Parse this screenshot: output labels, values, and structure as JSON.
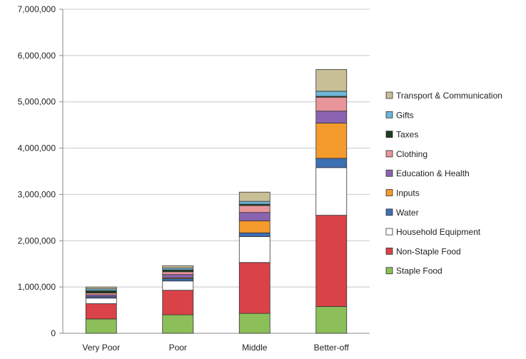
{
  "chart_data": {
    "type": "bar",
    "stacked": true,
    "categories": [
      "Very Poor",
      "Poor",
      "Middle",
      "Better-off"
    ],
    "ylim": [
      0,
      7000000
    ],
    "yticks": [
      {
        "value": 0,
        "label": "0"
      },
      {
        "value": 1000000,
        "label": "1,000,000"
      },
      {
        "value": 2000000,
        "label": "2,000,000"
      },
      {
        "value": 3000000,
        "label": "3,000,000"
      },
      {
        "value": 4000000,
        "label": "4,000,000"
      },
      {
        "value": 5000000,
        "label": "5,000,000"
      },
      {
        "value": 6000000,
        "label": "6,000,000"
      },
      {
        "value": 7000000,
        "label": "7,000,000"
      }
    ],
    "grid": true,
    "legend_position": "right",
    "series": [
      {
        "name": "Staple Food",
        "color": "#8cbf5a",
        "values": [
          310000,
          400000,
          430000,
          580000
        ]
      },
      {
        "name": "Non-Staple Food",
        "color": "#d94348",
        "values": [
          330000,
          530000,
          1100000,
          1970000
        ]
      },
      {
        "name": "Household Equipment",
        "color": "#ffffff",
        "values": [
          120000,
          200000,
          560000,
          1030000
        ]
      },
      {
        "name": "Water",
        "color": "#3d6fb3",
        "values": [
          30000,
          50000,
          80000,
          200000
        ]
      },
      {
        "name": "Inputs",
        "color": "#f59a2c",
        "values": [
          0,
          20000,
          260000,
          760000
        ]
      },
      {
        "name": "Education & Health",
        "color": "#8a64b0",
        "values": [
          40000,
          70000,
          180000,
          260000
        ]
      },
      {
        "name": "Clothing",
        "color": "#e8959a",
        "values": [
          40000,
          60000,
          150000,
          300000
        ]
      },
      {
        "name": "Taxes",
        "color": "#1e3d1e",
        "values": [
          50000,
          40000,
          30000,
          20000
        ]
      },
      {
        "name": "Gifts",
        "color": "#6fb5d9",
        "values": [
          40000,
          40000,
          60000,
          110000
        ]
      },
      {
        "name": "Transport & Communication",
        "color": "#c9bf96",
        "values": [
          40000,
          50000,
          200000,
          470000
        ]
      }
    ],
    "legend_order": [
      "Transport & Communication",
      "Gifts",
      "Taxes",
      "Clothing",
      "Education & Health",
      "Inputs",
      "Water",
      "Household Equipment",
      "Non-Staple Food",
      "Staple Food"
    ]
  }
}
